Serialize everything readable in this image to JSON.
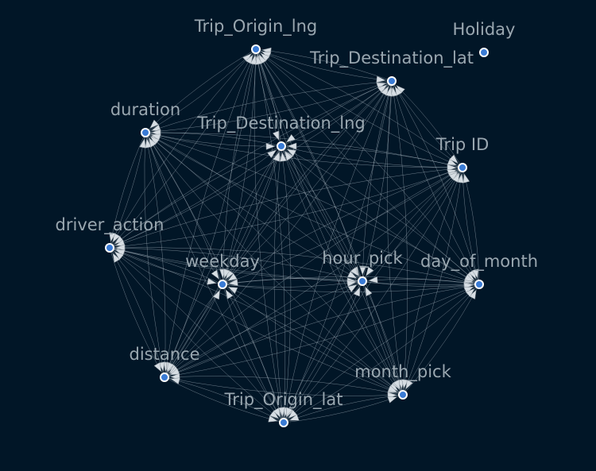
{
  "graph": {
    "node_color": "#3a7bd5",
    "edge_color": "#c8d2da",
    "label_color": "#9aa7b0",
    "background": "#011627",
    "nodes": [
      {
        "id": "Trip_Origin_lng",
        "label": "Trip_Origin_lng"
      },
      {
        "id": "Holiday",
        "label": "Holiday"
      },
      {
        "id": "Trip_Destination_lat",
        "label": "Trip_Destination_lat"
      },
      {
        "id": "duration",
        "label": "duration"
      },
      {
        "id": "Trip_Destination_lng",
        "label": "Trip_Destination_lng"
      },
      {
        "id": "Trip ID",
        "label": "Trip ID"
      },
      {
        "id": "driver_action",
        "label": "driver_action"
      },
      {
        "id": "weekday",
        "label": "weekday"
      },
      {
        "id": "hour_pick",
        "label": "hour_pick"
      },
      {
        "id": "day_of_month",
        "label": "day_of_month"
      },
      {
        "id": "distance",
        "label": "distance"
      },
      {
        "id": "month_pick",
        "label": "month_pick"
      },
      {
        "id": "Trip_Origin_lat",
        "label": "Trip_Origin_lat"
      }
    ]
  }
}
